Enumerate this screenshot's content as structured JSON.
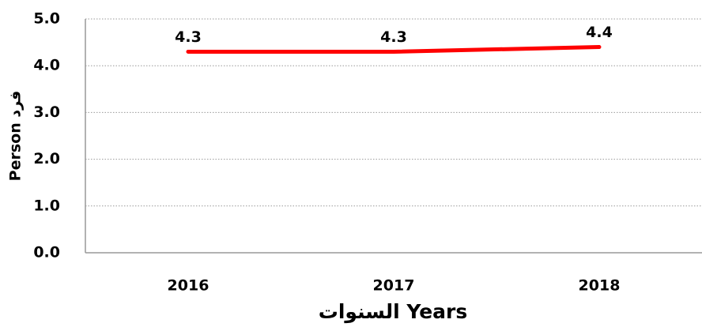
{
  "chart_data": {
    "type": "line",
    "categories": [
      "2016",
      "2017",
      "2018"
    ],
    "series": [
      {
        "name": "Person",
        "color": "#ff0000",
        "values": [
          4.3,
          4.3,
          4.4
        ]
      }
    ],
    "ylim": [
      0,
      5
    ],
    "yticks": [
      {
        "value": 0,
        "label": "0.0"
      },
      {
        "value": 1,
        "label": "1.0"
      },
      {
        "value": 2,
        "label": "2.0"
      },
      {
        "value": 3,
        "label": "3.0"
      },
      {
        "value": 4,
        "label": "4.0"
      },
      {
        "value": 5,
        "label": "5.0"
      }
    ],
    "grid": true,
    "x_label": "السنوات Years",
    "y_label": "Person فرد"
  }
}
